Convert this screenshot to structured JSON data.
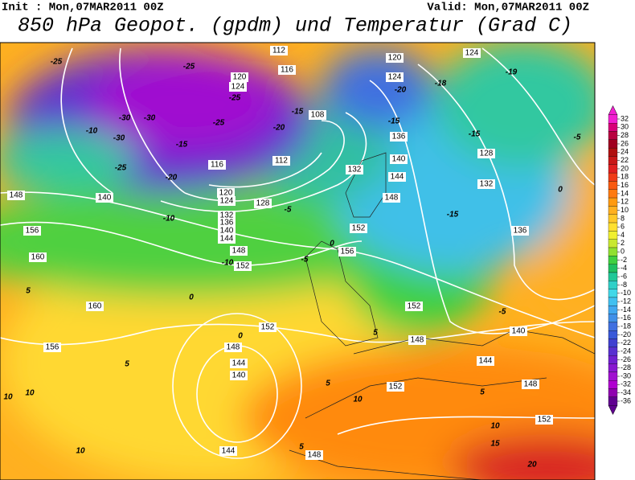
{
  "header": {
    "init": "Init : Mon,07MAR2011 00Z",
    "valid": "Valid: Mon,07MAR2011 00Z",
    "title": "850 hPa Geopot. (gpdm) und Temperatur (Grad C)"
  },
  "geopotential_labels": [
    "112",
    "116",
    "120",
    "124",
    "108",
    "112",
    "116",
    "120",
    "124",
    "128",
    "132",
    "136",
    "140",
    "144",
    "148",
    "152",
    "148",
    "140",
    "156",
    "160",
    "160",
    "156",
    "152",
    "148",
    "144",
    "140",
    "144",
    "148",
    "152",
    "152",
    "148",
    "144",
    "140",
    "148",
    "152",
    "156",
    "152",
    "148",
    "144",
    "140",
    "136",
    "132",
    "128",
    "132",
    "136",
    "120",
    "124",
    "124"
  ],
  "temperature_labels": [
    "-25",
    "-30",
    "-30",
    "-10",
    "-30",
    "-25",
    "-20",
    "-10",
    "-5",
    "0",
    "-5",
    "5",
    "0",
    "0",
    "5",
    "5",
    "10",
    "10",
    "10",
    "10",
    "10",
    "15",
    "20",
    "-15",
    "-15",
    "-5",
    "-5",
    "0",
    "-20",
    "-18",
    "-15",
    "-19",
    "-25",
    "-25",
    "-25",
    "-15",
    "-20",
    "5",
    "5",
    "5",
    "-10",
    "-15"
  ],
  "colorbar": {
    "ticks": [
      32,
      30,
      28,
      26,
      24,
      22,
      20,
      18,
      16,
      14,
      12,
      10,
      8,
      6,
      4,
      2,
      0,
      -2,
      -4,
      -6,
      -8,
      -10,
      -12,
      -14,
      -16,
      -18,
      -20,
      -22,
      -24,
      -26,
      -28,
      -30,
      -32,
      -34,
      -36
    ],
    "colors": [
      "#f020d0",
      "#d80078",
      "#b80040",
      "#a00020",
      "#b01010",
      "#c81818",
      "#e02020",
      "#f03c18",
      "#f85a10",
      "#ff7a10",
      "#ff9a10",
      "#ffb020",
      "#ffc828",
      "#ffe030",
      "#f0f030",
      "#c8e830",
      "#90e030",
      "#40d040",
      "#20c060",
      "#20c898",
      "#30d0c8",
      "#40d8e8",
      "#40c0f0",
      "#40a8f0",
      "#4090e8",
      "#4070e0",
      "#3858d8",
      "#4040d0",
      "#5830d0",
      "#7020d0",
      "#8818d0",
      "#a010d0",
      "#b000d0",
      "#9000b0",
      "#600090"
    ]
  }
}
